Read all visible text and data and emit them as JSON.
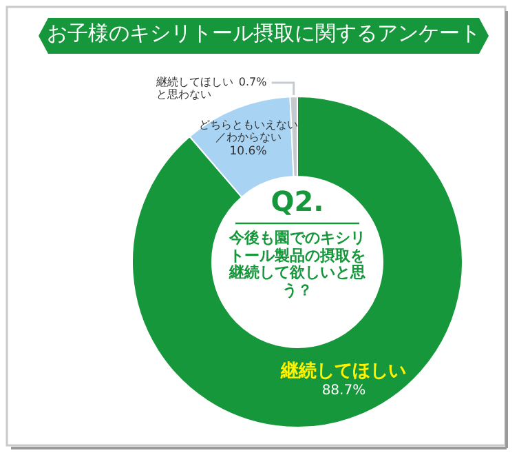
{
  "chart_data": {
    "type": "donut",
    "title": "お子様のキシリトール摂取に関するアンケート",
    "categories": [
      "継続してほしい",
      "どちらともいえない／わからない",
      "継続してほしいと思わない"
    ],
    "values": [
      88.7,
      10.6,
      0.7
    ],
    "value_labels": [
      "88.7%",
      "10.6%",
      "0.7%"
    ],
    "colors": [
      "#17973b",
      "#a8d3f3",
      "#c5cacf"
    ],
    "annotations": [
      "Q2.",
      "今後も園でのキシリトール製品の摂取を継続して欲しいと思う？"
    ]
  }
}
